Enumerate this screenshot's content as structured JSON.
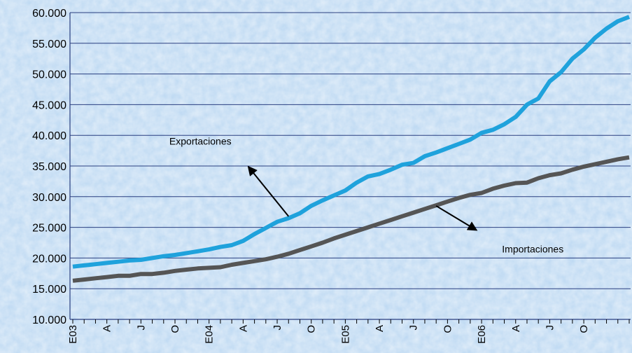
{
  "chart_data": {
    "type": "line",
    "title": "",
    "xlabel": "",
    "ylabel": "",
    "ylim": [
      10000,
      60000
    ],
    "y_ticks": [
      10000,
      15000,
      20000,
      25000,
      30000,
      35000,
      40000,
      45000,
      50000,
      55000,
      60000
    ],
    "y_tick_labels": [
      "10.000",
      "15.000",
      "20.000",
      "25.000",
      "30.000",
      "35.000",
      "40.000",
      "45.000",
      "50.000",
      "55.000",
      "60.000"
    ],
    "x_tick_labels": [
      "E03",
      "A",
      "J",
      "O",
      "E04",
      "A",
      "J",
      "O",
      "E05",
      "A",
      "J",
      "O",
      "E06",
      "A",
      "J",
      "O"
    ],
    "x_tick_months": [
      0,
      3,
      6,
      9,
      12,
      15,
      18,
      21,
      24,
      27,
      30,
      33,
      36,
      39,
      42,
      45
    ],
    "grid": {
      "horizontal": true,
      "vertical": false
    },
    "legend": "none",
    "colors": {
      "background": "#bcd8f2",
      "grid": "#2a3f80",
      "exports": "#1fa2dc",
      "imports": "#555555"
    },
    "series": [
      {
        "key": "exports",
        "values": [
          18600,
          18800,
          19000,
          19200,
          19400,
          19600,
          19700,
          20000,
          20300,
          20500,
          20800,
          21100,
          21400,
          21800,
          22100,
          22800,
          23900,
          24900,
          25900,
          26500,
          27300,
          28500,
          29400,
          30200,
          31000,
          32300,
          33300,
          33700,
          34400,
          35200,
          35500,
          36600,
          37200,
          37900,
          38600,
          39300,
          40400,
          40900,
          41800,
          43000,
          45000,
          46000,
          48800,
          50300,
          52500,
          54000,
          55900,
          57400,
          58600,
          59300
        ]
      },
      {
        "key": "imports",
        "values": [
          16300,
          16500,
          16700,
          16900,
          17100,
          17100,
          17400,
          17400,
          17600,
          17900,
          18100,
          18300,
          18400,
          18500,
          18900,
          19200,
          19500,
          19800,
          20200,
          20700,
          21300,
          21900,
          22500,
          23200,
          23800,
          24400,
          25000,
          25600,
          26200,
          26800,
          27400,
          28000,
          28600,
          29200,
          29800,
          30300,
          30600,
          31300,
          31800,
          32200,
          32300,
          33000,
          33500,
          33800,
          34400,
          34900,
          35300,
          35700,
          36100,
          36400
        ]
      }
    ],
    "annotations": [
      {
        "text": "Exportaciones",
        "series": "exports",
        "text_month": 8.5,
        "text_value": 38500,
        "arrow_from_month": 19,
        "arrow_from_value": 26800,
        "arrow_to_month": 15.5,
        "arrow_to_value": 34800
      },
      {
        "text": "Importaciones",
        "series": "imports",
        "text_month": 37.8,
        "text_value": 20900,
        "arrow_from_month": 32,
        "arrow_from_value": 28500,
        "arrow_to_month": 35.5,
        "arrow_to_value": 24600
      }
    ]
  }
}
